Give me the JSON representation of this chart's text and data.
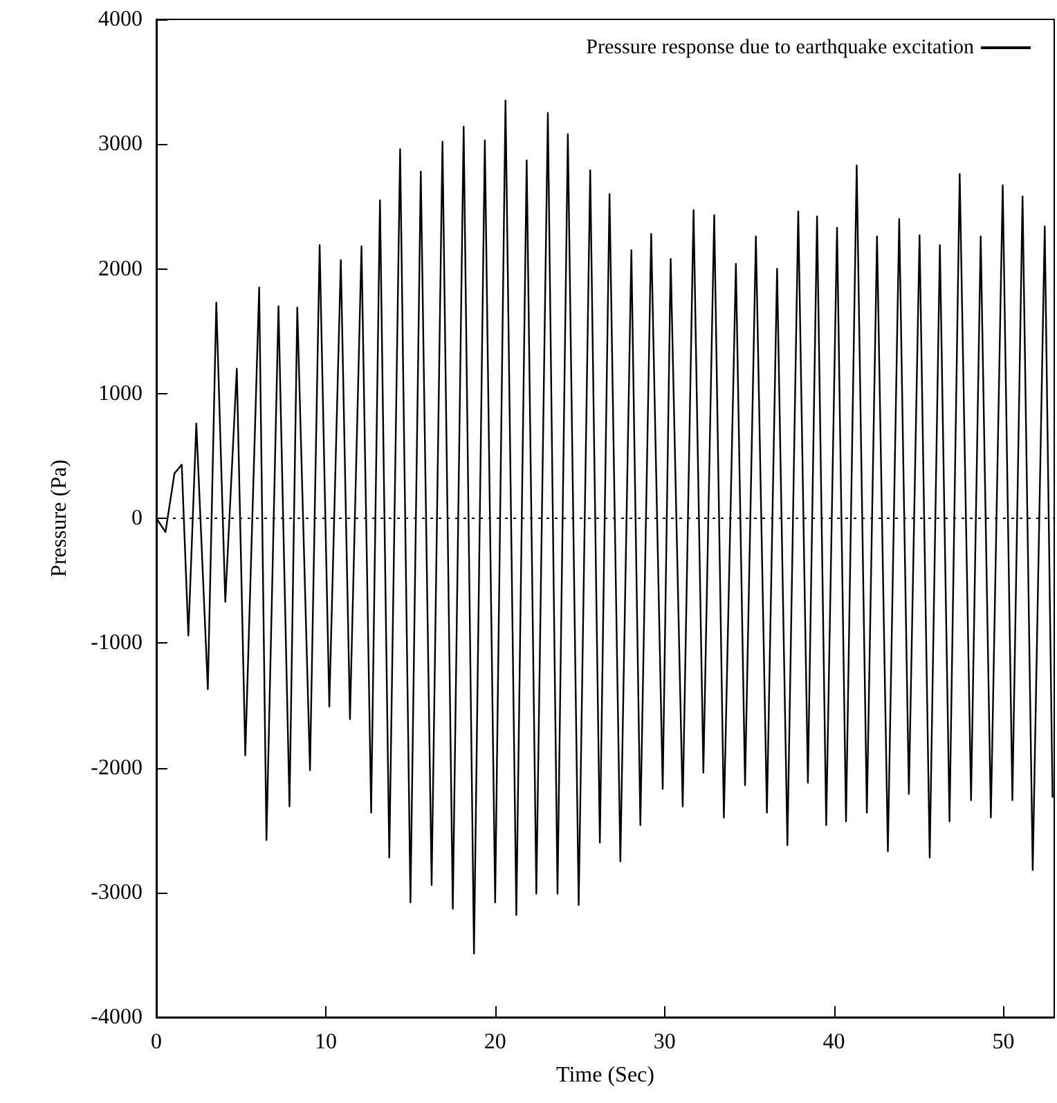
{
  "chart_data": {
    "type": "line",
    "xlabel": "Time (Sec)",
    "ylabel": "Pressure (Pa)",
    "xlim": [
      0,
      53
    ],
    "xticks": [
      0,
      10,
      20,
      30,
      40,
      50
    ],
    "ylim": [
      -4000,
      4000
    ],
    "yticks": [
      -4000,
      -3000,
      -2000,
      -1000,
      0,
      1000,
      2000,
      3000,
      4000
    ],
    "grid": false,
    "legend": "top right",
    "marker": "none",
    "line_style": "solid",
    "ref_lines": [
      {
        "axis": "y",
        "value": 0,
        "line_style": "dotted",
        "color": "#000000"
      }
    ],
    "series": [
      {
        "name": "Pressure response due to earthquake excitation",
        "color": "#000000",
        "x": [
          0,
          0.54,
          1.07,
          1.5,
          1.89,
          2.36,
          3.04,
          3.54,
          4.07,
          4.75,
          5.25,
          6.07,
          6.5,
          7.21,
          7.86,
          8.32,
          9.07,
          9.64,
          10.21,
          10.89,
          11.43,
          12.11,
          12.68,
          13.2,
          13.75,
          14.39,
          15.0,
          15.61,
          16.25,
          16.89,
          17.5,
          18.14,
          18.75,
          19.39,
          20.0,
          20.61,
          21.25,
          21.86,
          22.43,
          23.11,
          23.68,
          24.29,
          24.93,
          25.61,
          26.18,
          26.75,
          27.39,
          28.04,
          28.57,
          29.21,
          29.89,
          30.36,
          31.07,
          31.71,
          32.29,
          32.93,
          33.5,
          34.21,
          34.75,
          35.39,
          36.04,
          36.64,
          37.25,
          37.89,
          38.46,
          39.0,
          39.54,
          40.18,
          40.71,
          41.34,
          41.94,
          42.54,
          43.18,
          43.85,
          44.42,
          45.05,
          45.65,
          46.25,
          46.82,
          47.42,
          48.09,
          48.66,
          49.26,
          49.96,
          50.53,
          51.13,
          51.73,
          52.44,
          52.9
        ],
        "values": [
          0,
          -110,
          360,
          430,
          -940,
          760,
          -1370,
          1730,
          -670,
          1200,
          -1900,
          1850,
          -2580,
          1700,
          -2310,
          1690,
          -2020,
          2190,
          -1510,
          2070,
          -1610,
          2180,
          -2360,
          2550,
          -2720,
          2960,
          -3080,
          2780,
          -2940,
          3020,
          -3130,
          3140,
          -3490,
          3030,
          -3080,
          3350,
          -3180,
          2870,
          -3010,
          3250,
          -3010,
          3080,
          -3100,
          2790,
          -2600,
          2600,
          -2750,
          2150,
          -2460,
          2280,
          -2170,
          2080,
          -2310,
          2470,
          -2040,
          2430,
          -2400,
          2040,
          -2140,
          2260,
          -2360,
          2000,
          -2620,
          2460,
          -2120,
          2420,
          -2460,
          2330,
          -2430,
          2830,
          -2360,
          2260,
          -2670,
          2400,
          -2210,
          2270,
          -2720,
          2190,
          -2430,
          2760,
          -2260,
          2260,
          -2400,
          2670,
          -2260,
          2580,
          -2820,
          2340,
          -2240
        ]
      }
    ]
  }
}
